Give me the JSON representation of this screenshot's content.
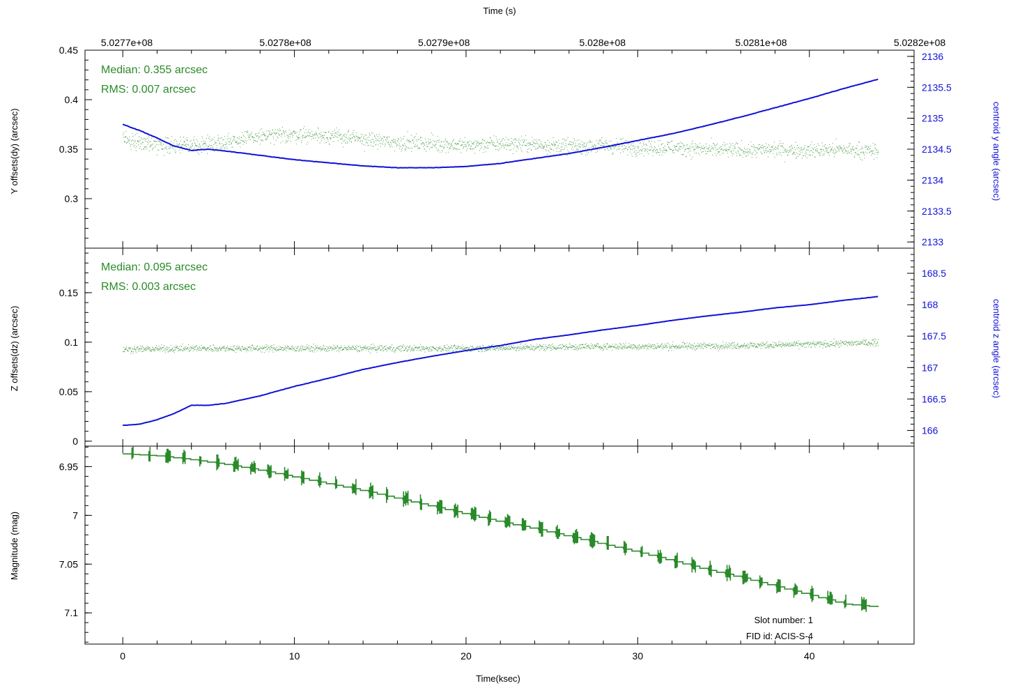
{
  "figure": {
    "top_axis_label": "Time (s)",
    "bottom_axis_label": "Time(ksec)",
    "top_ticks": [
      "5.0277e+08",
      "5.0278e+08",
      "5.0279e+08",
      "5.028e+08",
      "5.0281e+08",
      "5.0282e+08"
    ],
    "slot_text": "Slot number: 1",
    "fid_text": "FID id: ACIS-S-4"
  },
  "colors": {
    "green": "#2a8a2a",
    "blue": "#1010d8",
    "axis": "#000000"
  },
  "chart_data": [
    {
      "type": "line",
      "id": "dy",
      "ylabel": "Y offsets(dy) (arcsec)",
      "y2label": "centroid y angle (arcsec)",
      "ylim": [
        0.25,
        0.45
      ],
      "y2lim": [
        2132.9,
        2136.1
      ],
      "yticks": [
        0.3,
        0.35,
        0.4,
        0.45
      ],
      "y2ticks": [
        2133,
        2133.5,
        2134,
        2134.5,
        2135,
        2135.5,
        2136
      ],
      "xlim": [
        -2.2,
        46.1
      ],
      "annotations": [
        "Median: 0.355 arcsec",
        "RMS: 0.007 arcsec"
      ],
      "series": [
        {
          "axis": "left",
          "color": "green",
          "style": "dots",
          "x": [
            0,
            2,
            4,
            6,
            8,
            10,
            12,
            14,
            16,
            18,
            20,
            22,
            24,
            26,
            28,
            30,
            32,
            34,
            36,
            38,
            40,
            42,
            44
          ],
          "y": [
            0.36,
            0.355,
            0.354,
            0.358,
            0.363,
            0.365,
            0.364,
            0.36,
            0.357,
            0.356,
            0.354,
            0.356,
            0.355,
            0.353,
            0.354,
            0.352,
            0.352,
            0.35,
            0.349,
            0.35,
            0.349,
            0.35,
            0.348
          ],
          "noise": 0.007
        },
        {
          "axis": "right",
          "color": "blue",
          "style": "line",
          "x": [
            0,
            1,
            2,
            3,
            4,
            5,
            6,
            8,
            10,
            12,
            14,
            16,
            18,
            20,
            22,
            24,
            26,
            28,
            30,
            32,
            34,
            36,
            38,
            40,
            42,
            44
          ],
          "y": [
            2134.9,
            2134.8,
            2134.68,
            2134.55,
            2134.48,
            2134.5,
            2134.47,
            2134.4,
            2134.33,
            2134.28,
            2134.23,
            2134.2,
            2134.2,
            2134.22,
            2134.27,
            2134.35,
            2134.43,
            2134.53,
            2134.64,
            2134.75,
            2134.88,
            2135.02,
            2135.17,
            2135.32,
            2135.48,
            2135.63
          ],
          "noise": 0.006
        }
      ]
    },
    {
      "type": "line",
      "id": "dz",
      "ylabel": "Z offsets(dz) (arcsec)",
      "y2label": "centroid z angle (arcsec)",
      "ylim": [
        -0.005,
        0.195
      ],
      "y2lim": [
        165.75,
        168.9
      ],
      "yticks": [
        0,
        0.05,
        0.1,
        0.15
      ],
      "y2ticks": [
        166,
        166.5,
        167,
        167.5,
        168,
        168.5
      ],
      "xlim": [
        -2.2,
        46.1
      ],
      "annotations": [
        "Median: 0.095 arcsec",
        "RMS: 0.003 arcsec"
      ],
      "series": [
        {
          "axis": "left",
          "color": "green",
          "style": "dots",
          "x": [
            0,
            4,
            8,
            12,
            16,
            20,
            24,
            28,
            32,
            36,
            40,
            44
          ],
          "y": [
            0.093,
            0.094,
            0.094,
            0.094,
            0.094,
            0.094,
            0.095,
            0.096,
            0.096,
            0.097,
            0.098,
            0.1
          ],
          "noise": 0.003
        },
        {
          "axis": "right",
          "color": "blue",
          "style": "line",
          "x": [
            0,
            1,
            2,
            3,
            4,
            5,
            6,
            8,
            10,
            12,
            14,
            16,
            18,
            20,
            22,
            24,
            26,
            28,
            30,
            32,
            34,
            36,
            38,
            40,
            42,
            44
          ],
          "y": [
            166.08,
            166.1,
            166.17,
            166.27,
            166.4,
            166.4,
            166.43,
            166.55,
            166.7,
            166.83,
            166.97,
            167.08,
            167.18,
            167.27,
            167.35,
            167.45,
            167.52,
            167.6,
            167.67,
            167.75,
            167.82,
            167.88,
            167.95,
            168.0,
            168.07,
            168.13
          ],
          "noise": 0.004
        }
      ]
    },
    {
      "type": "line",
      "id": "mag",
      "ylabel": "Magnitude (mag)",
      "ylim": [
        6.929,
        7.132
      ],
      "y_inverted": true,
      "yticks": [
        6.95,
        7,
        7.05,
        7.1
      ],
      "xlabel": "Time(ksec)",
      "xticks": [
        0,
        10,
        20,
        30,
        40
      ],
      "xlim": [
        -2.2,
        46.1
      ],
      "series": [
        {
          "axis": "left",
          "color": "green",
          "style": "steps",
          "x": [
            0,
            2,
            4,
            6,
            8,
            10,
            12,
            14,
            16,
            18,
            20,
            22,
            24,
            26,
            28,
            30,
            32,
            34,
            36,
            38,
            40,
            42,
            44
          ],
          "y": [
            6.937,
            6.939,
            6.943,
            6.948,
            6.954,
            6.961,
            6.968,
            6.975,
            6.983,
            6.991,
            6.999,
            7.007,
            7.014,
            7.022,
            7.03,
            7.038,
            7.047,
            7.056,
            7.064,
            7.073,
            7.082,
            7.091,
            7.094
          ]
        }
      ]
    }
  ]
}
